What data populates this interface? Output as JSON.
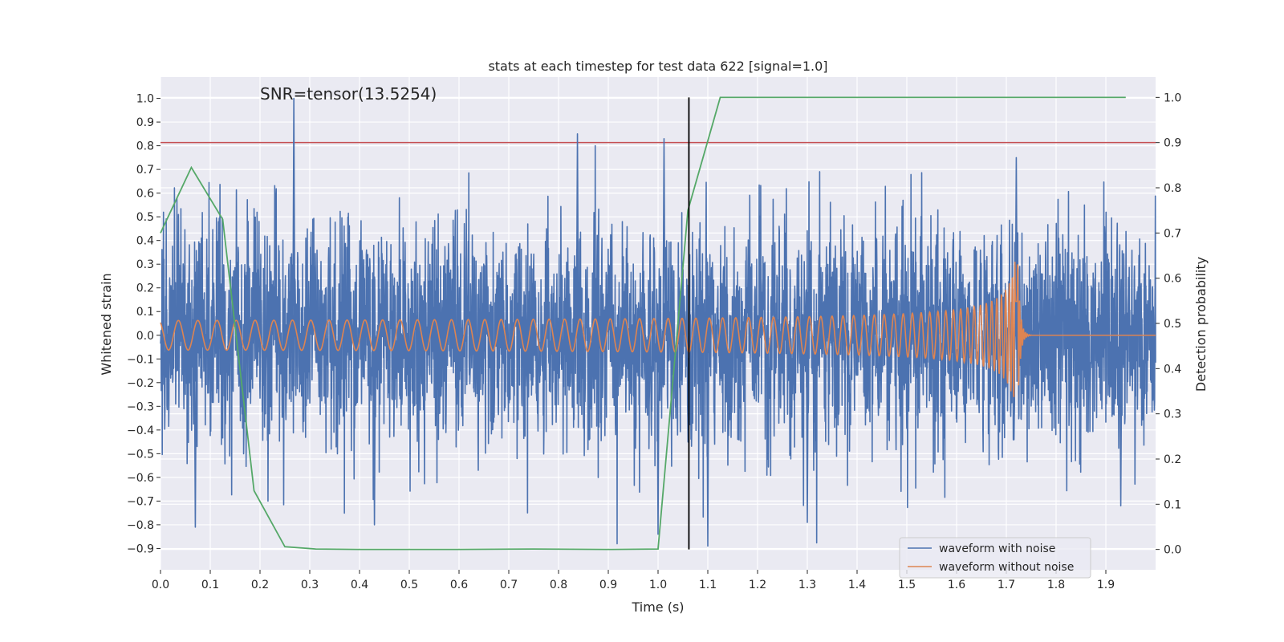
{
  "chart_data": {
    "type": "line",
    "title": "stats at each timestep for test data 622 [signal=1.0]",
    "annotation": "SNR=tensor(13.5254)",
    "xlabel": "Time (s)",
    "ylabel": "Whitened strain",
    "y2label": "Detection probability",
    "xlim": [
      0.0,
      2.0
    ],
    "ylim": [
      -0.99,
      1.09
    ],
    "y2lim": [
      -0.045,
      1.045
    ],
    "x_ticks": [
      "0.0",
      "0.1",
      "0.2",
      "0.3",
      "0.4",
      "0.5",
      "0.6",
      "0.7",
      "0.8",
      "0.9",
      "1.0",
      "1.1",
      "1.2",
      "1.3",
      "1.4",
      "1.5",
      "1.6",
      "1.7",
      "1.8",
      "1.9"
    ],
    "y_ticks": [
      "−0.9",
      "−0.8",
      "−0.7",
      "−0.6",
      "−0.5",
      "−0.4",
      "−0.3",
      "−0.2",
      "−0.1",
      "0.0",
      "0.1",
      "0.2",
      "0.3",
      "0.4",
      "0.5",
      "0.6",
      "0.7",
      "0.8",
      "0.9",
      "1.0"
    ],
    "y2_ticks": [
      "0.0",
      "0.1",
      "0.2",
      "0.3",
      "0.4",
      "0.5",
      "0.6",
      "0.7",
      "0.8",
      "0.9",
      "1.0"
    ],
    "grid": true,
    "legend_position": "lower-right",
    "series": [
      {
        "name": "waveform with noise",
        "axis": "left",
        "color": "#4c72b0",
        "noise_amplitude": 0.22,
        "spikes": [
          {
            "x": 0.268,
            "y": 1.0
          },
          {
            "x": 0.838,
            "y": 0.85
          },
          {
            "x": 1.012,
            "y": 0.83
          },
          {
            "x": 1.72,
            "y": 0.75
          },
          {
            "x": 0.07,
            "y": -0.81
          },
          {
            "x": 1.1,
            "y": -0.89
          },
          {
            "x": 1.0,
            "y": -0.84
          },
          {
            "x": 0.43,
            "y": -0.8
          },
          {
            "x": 1.3,
            "y": -0.79
          },
          {
            "x": 1.93,
            "y": -0.72
          }
        ]
      },
      {
        "name": "waveform without noise",
        "axis": "left",
        "color": "#dd8452",
        "start_frequency_hz": 31,
        "merger_time": 1.722,
        "start_amplitude": 0.05,
        "peak_amplitude": 0.42,
        "ringdown_end": 1.75
      },
      {
        "name": "detection probability",
        "axis": "right",
        "color": "#55a868",
        "x": [
          0.0,
          0.062,
          0.125,
          0.188,
          0.25,
          0.312,
          0.4,
          0.5,
          0.6,
          0.75,
          0.9,
          1.0,
          1.06,
          1.125,
          1.94
        ],
        "y": [
          0.7,
          0.845,
          0.73,
          0.13,
          0.006,
          0.001,
          0.0,
          0.0,
          0.0,
          0.001,
          0.0,
          0.001,
          0.75,
          1.0,
          1.0
        ]
      }
    ],
    "threshold_line": {
      "axis": "right",
      "y": 0.9,
      "color": "#c44e52"
    },
    "vertical_line": {
      "x": 1.062,
      "color": "#000000"
    }
  }
}
